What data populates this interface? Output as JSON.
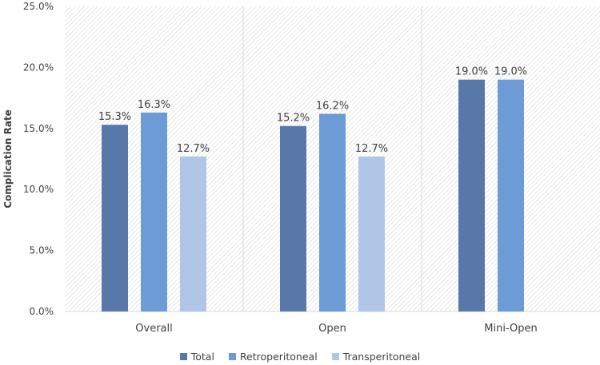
{
  "chart_data": {
    "type": "bar",
    "categories": [
      "Overall",
      "Open",
      "Mini-Open"
    ],
    "series": [
      {
        "name": "Total",
        "color": "#5978aa",
        "values": [
          15.3,
          15.2,
          19.0
        ],
        "labels": [
          "15.3%",
          "15.2%",
          "19.0%"
        ]
      },
      {
        "name": "Retroperitoneal",
        "color": "#6d9bd6",
        "values": [
          16.3,
          16.2,
          19.0
        ],
        "labels": [
          "16.3%",
          "16.2%",
          "19.0%"
        ]
      },
      {
        "name": "Transperitoneal",
        "color": "#b1c6e6",
        "values": [
          12.7,
          12.7,
          null
        ],
        "labels": [
          "12.7%",
          "12.7%",
          null
        ]
      }
    ],
    "ylabel": "Complication Rate",
    "xlabel": "",
    "ylim": [
      0,
      25
    ],
    "yticks": [
      0,
      5,
      10,
      15,
      20,
      25
    ],
    "ytick_labels": [
      "0.0%",
      "5.0%",
      "10.0%",
      "15.0%",
      "20.0%",
      "25.0%"
    ],
    "grid": false,
    "legend_position": "bottom",
    "background": "diagonal-hatch"
  }
}
